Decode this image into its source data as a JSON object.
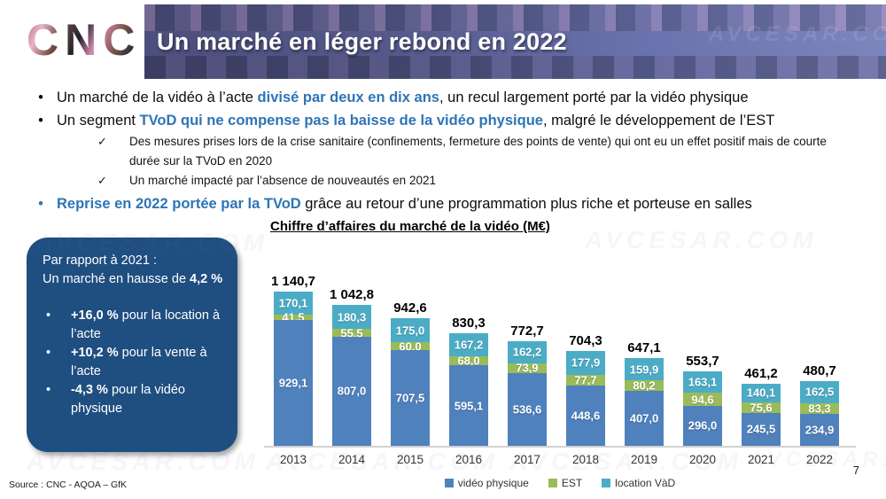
{
  "header": {
    "logo": "CNC",
    "title": "Un marché en léger rebond en 2022"
  },
  "bullets": {
    "dot": "•",
    "check": "✓",
    "b1": {
      "pre": "Un marché de la vidéo à l’acte ",
      "hl": "divisé par deux en dix ans",
      "post": ", un recul largement porté par la vidéo physique"
    },
    "b2": {
      "pre": "Un segment ",
      "hl": "TVoD qui ne compense pas la baisse de la vidéo physique",
      "post": ", malgré le développement de l’EST"
    },
    "sub1": "Des mesures prises lors de la crise sanitaire (confinements, fermeture des points de vente) qui ont eu un effet positif mais de courte durée sur la TVoD en 2020",
    "sub2": "Un marché impacté par l’absence de nouveautés en 2021",
    "b3": {
      "hl": "Reprise en 2022 portée par la TVoD",
      "post": " grâce au retour d’une programmation plus riche et porteuse en salles"
    }
  },
  "info_box": {
    "line1": "Par rapport à 2021 :",
    "line2_pre": "Un marché en hausse de ",
    "line2_bold": "4,2 %",
    "items": [
      {
        "bold": "+16,0 %",
        "rest": " pour la location à l’acte"
      },
      {
        "bold": "+10,2 %",
        "rest": " pour la vente à l’acte"
      },
      {
        "bold": "-4,3 %",
        "rest": " pour la vidéo physique"
      }
    ]
  },
  "chart_data": {
    "type": "bar",
    "stacked": true,
    "title": "Chiffre d’affaires du marché de la vidéo (M€)",
    "categories": [
      "2013",
      "2014",
      "2015",
      "2016",
      "2017",
      "2018",
      "2019",
      "2020",
      "2021",
      "2022"
    ],
    "series": [
      {
        "name": "vidéo physique",
        "color": "#4f81bd",
        "values": [
          929.1,
          807.0,
          707.5,
          595.1,
          536.6,
          448.6,
          407.0,
          296.0,
          245.5,
          234.9
        ],
        "labels": [
          "929,1",
          "807,0",
          "707,5",
          "595,1",
          "536,6",
          "448,6",
          "407,0",
          "296,0",
          "245,5",
          "234,9"
        ]
      },
      {
        "name": "EST",
        "color": "#9bbb59",
        "values": [
          41.5,
          55.5,
          60.0,
          68.0,
          73.9,
          77.7,
          80.2,
          94.6,
          75.6,
          83.3
        ],
        "labels": [
          "41,5",
          "55,5",
          "60,0",
          "68,0",
          "73,9",
          "77,7",
          "80,2",
          "94,6",
          "75,6",
          "83,3"
        ]
      },
      {
        "name": "location VàD",
        "color": "#4bacc6",
        "values": [
          170.1,
          180.3,
          175.0,
          167.2,
          162.2,
          177.9,
          159.9,
          163.1,
          140.1,
          162.5
        ],
        "labels": [
          "170,1",
          "180,3",
          "175,0",
          "167,2",
          "162,2",
          "177,9",
          "159,9",
          "163,1",
          "140,1",
          "162,5"
        ]
      }
    ],
    "totals": [
      1140.7,
      1042.8,
      942.6,
      830.3,
      772.7,
      704.3,
      647.1,
      553.7,
      461.2,
      480.7
    ],
    "total_labels": [
      "1 140,7",
      "1 042,8",
      "942,6",
      "830,3",
      "772,7",
      "704,3",
      "647,1",
      "553,7",
      "461,2",
      "480,7"
    ],
    "ylim": [
      0,
      1200
    ],
    "grid": false,
    "legend_position": "bottom"
  },
  "footer": {
    "source": "Source : CNC  - AQOA – GfK",
    "page": "7"
  },
  "watermark": "AVCESAR.COM"
}
